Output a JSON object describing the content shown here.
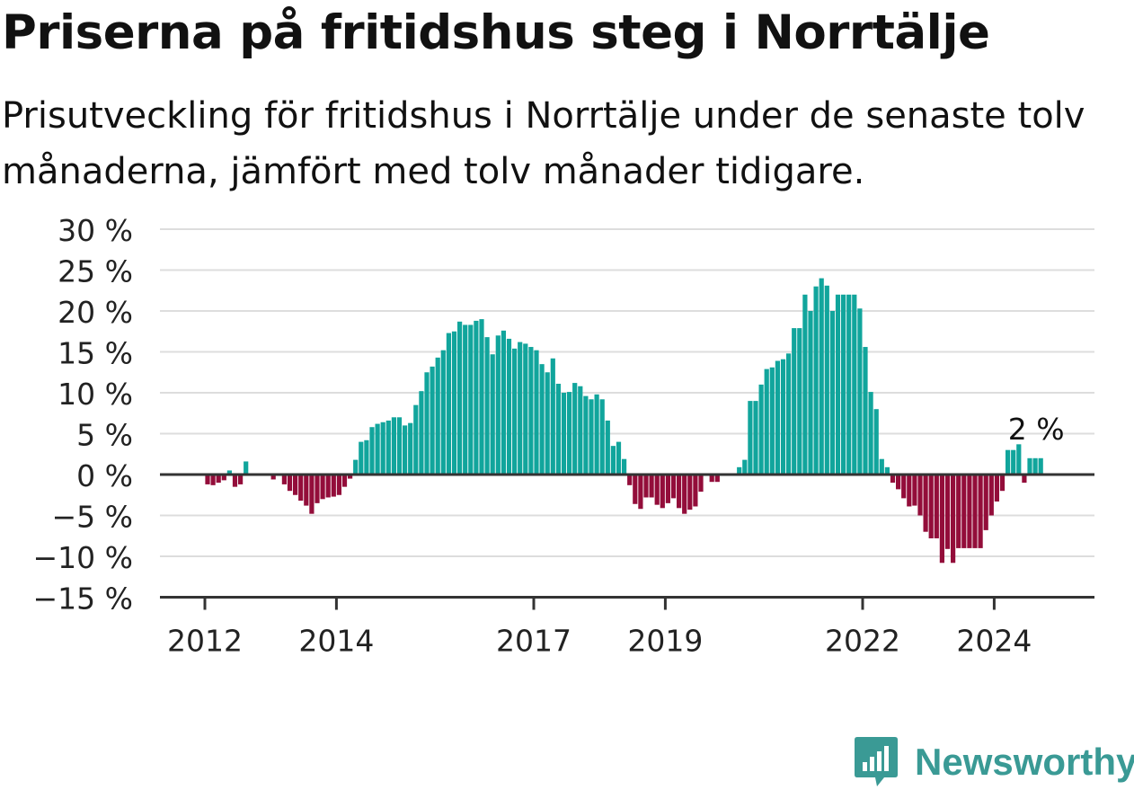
{
  "title": "Priserna på fritidshus steg i Norrtälje",
  "subtitle": "Prisutveckling för fritidshus i Norrtälje under de senaste tolv månaderna, jämfört med tolv månader tidigare.",
  "brand": {
    "name": "Newsworthy",
    "color": "#3a9a95"
  },
  "colors": {
    "positive": "#11a59c",
    "negative": "#930d3a",
    "zero_line": "#333333",
    "grid": "#dddddd"
  },
  "chart_data": {
    "type": "bar",
    "title": "Priserna på fritidshus steg i Norrtälje",
    "ylim": [
      -15,
      30
    ],
    "y_ticks": [
      30,
      25,
      20,
      15,
      10,
      5,
      0,
      -5,
      -10,
      -15
    ],
    "y_tick_labels": [
      "30 %",
      "25 %",
      "20 %",
      "15 %",
      "10 %",
      "5 %",
      "0 %",
      "−5 %",
      "−10 %",
      "−15 %"
    ],
    "x_ticks": [
      "2012",
      "2014",
      "2017",
      "2019",
      "2022",
      "2024"
    ],
    "grid": true,
    "annotation": {
      "label": "2 %",
      "value": 2
    },
    "start": "2012-01",
    "frequency": "monthly",
    "values": [
      -1.2,
      -1.3,
      -1.0,
      -0.7,
      0.5,
      -1.5,
      -1.2,
      1.6,
      0,
      0,
      0,
      0,
      -0.6,
      0,
      -1.2,
      -2.0,
      -2.5,
      -3.2,
      -3.8,
      -4.8,
      -3.5,
      -3.0,
      -2.8,
      -2.7,
      -2.5,
      -1.5,
      -0.5,
      1.8,
      4.0,
      4.2,
      5.8,
      6.2,
      6.4,
      6.6,
      7.0,
      7.0,
      6.0,
      6.3,
      8.5,
      10.2,
      12.5,
      13.2,
      14.3,
      15.2,
      17.3,
      17.5,
      18.7,
      18.3,
      18.3,
      18.8,
      19.0,
      16.8,
      14.7,
      17.0,
      17.6,
      16.6,
      15.4,
      16.2,
      16.0,
      15.6,
      15.2,
      13.5,
      12.5,
      14.2,
      11.1,
      10.0,
      10.1,
      11.2,
      10.8,
      9.6,
      9.2,
      9.8,
      9.2,
      6.6,
      3.5,
      4.0,
      1.9,
      -1.3,
      -3.6,
      -4.2,
      -2.8,
      -2.8,
      -3.7,
      -4.1,
      -3.5,
      -2.9,
      -4.1,
      -4.8,
      -4.3,
      -3.9,
      -2.1,
      0,
      -0.9,
      -0.9,
      0,
      0,
      0,
      0.9,
      1.8,
      9.0,
      9.0,
      11.0,
      12.9,
      13.1,
      13.9,
      14.1,
      14.8,
      17.9,
      17.9,
      22.0,
      20.0,
      23.0,
      24.0,
      23.1,
      20.0,
      22.0,
      22.0,
      22.0,
      22.0,
      20.3,
      15.6,
      10.1,
      8.0,
      1.9,
      0.9,
      -1.0,
      -1.8,
      -2.9,
      -3.9,
      -3.8,
      -5.0,
      -7.0,
      -7.8,
      -7.8,
      -10.8,
      -9.1,
      -10.8,
      -9.0,
      -9.0,
      -9.0,
      -9.0,
      -9.0,
      -6.8,
      -5.0,
      -3.3,
      -2.0,
      3.0,
      3.0,
      3.7,
      -1.0,
      2.0,
      2.0,
      2.0
    ]
  }
}
